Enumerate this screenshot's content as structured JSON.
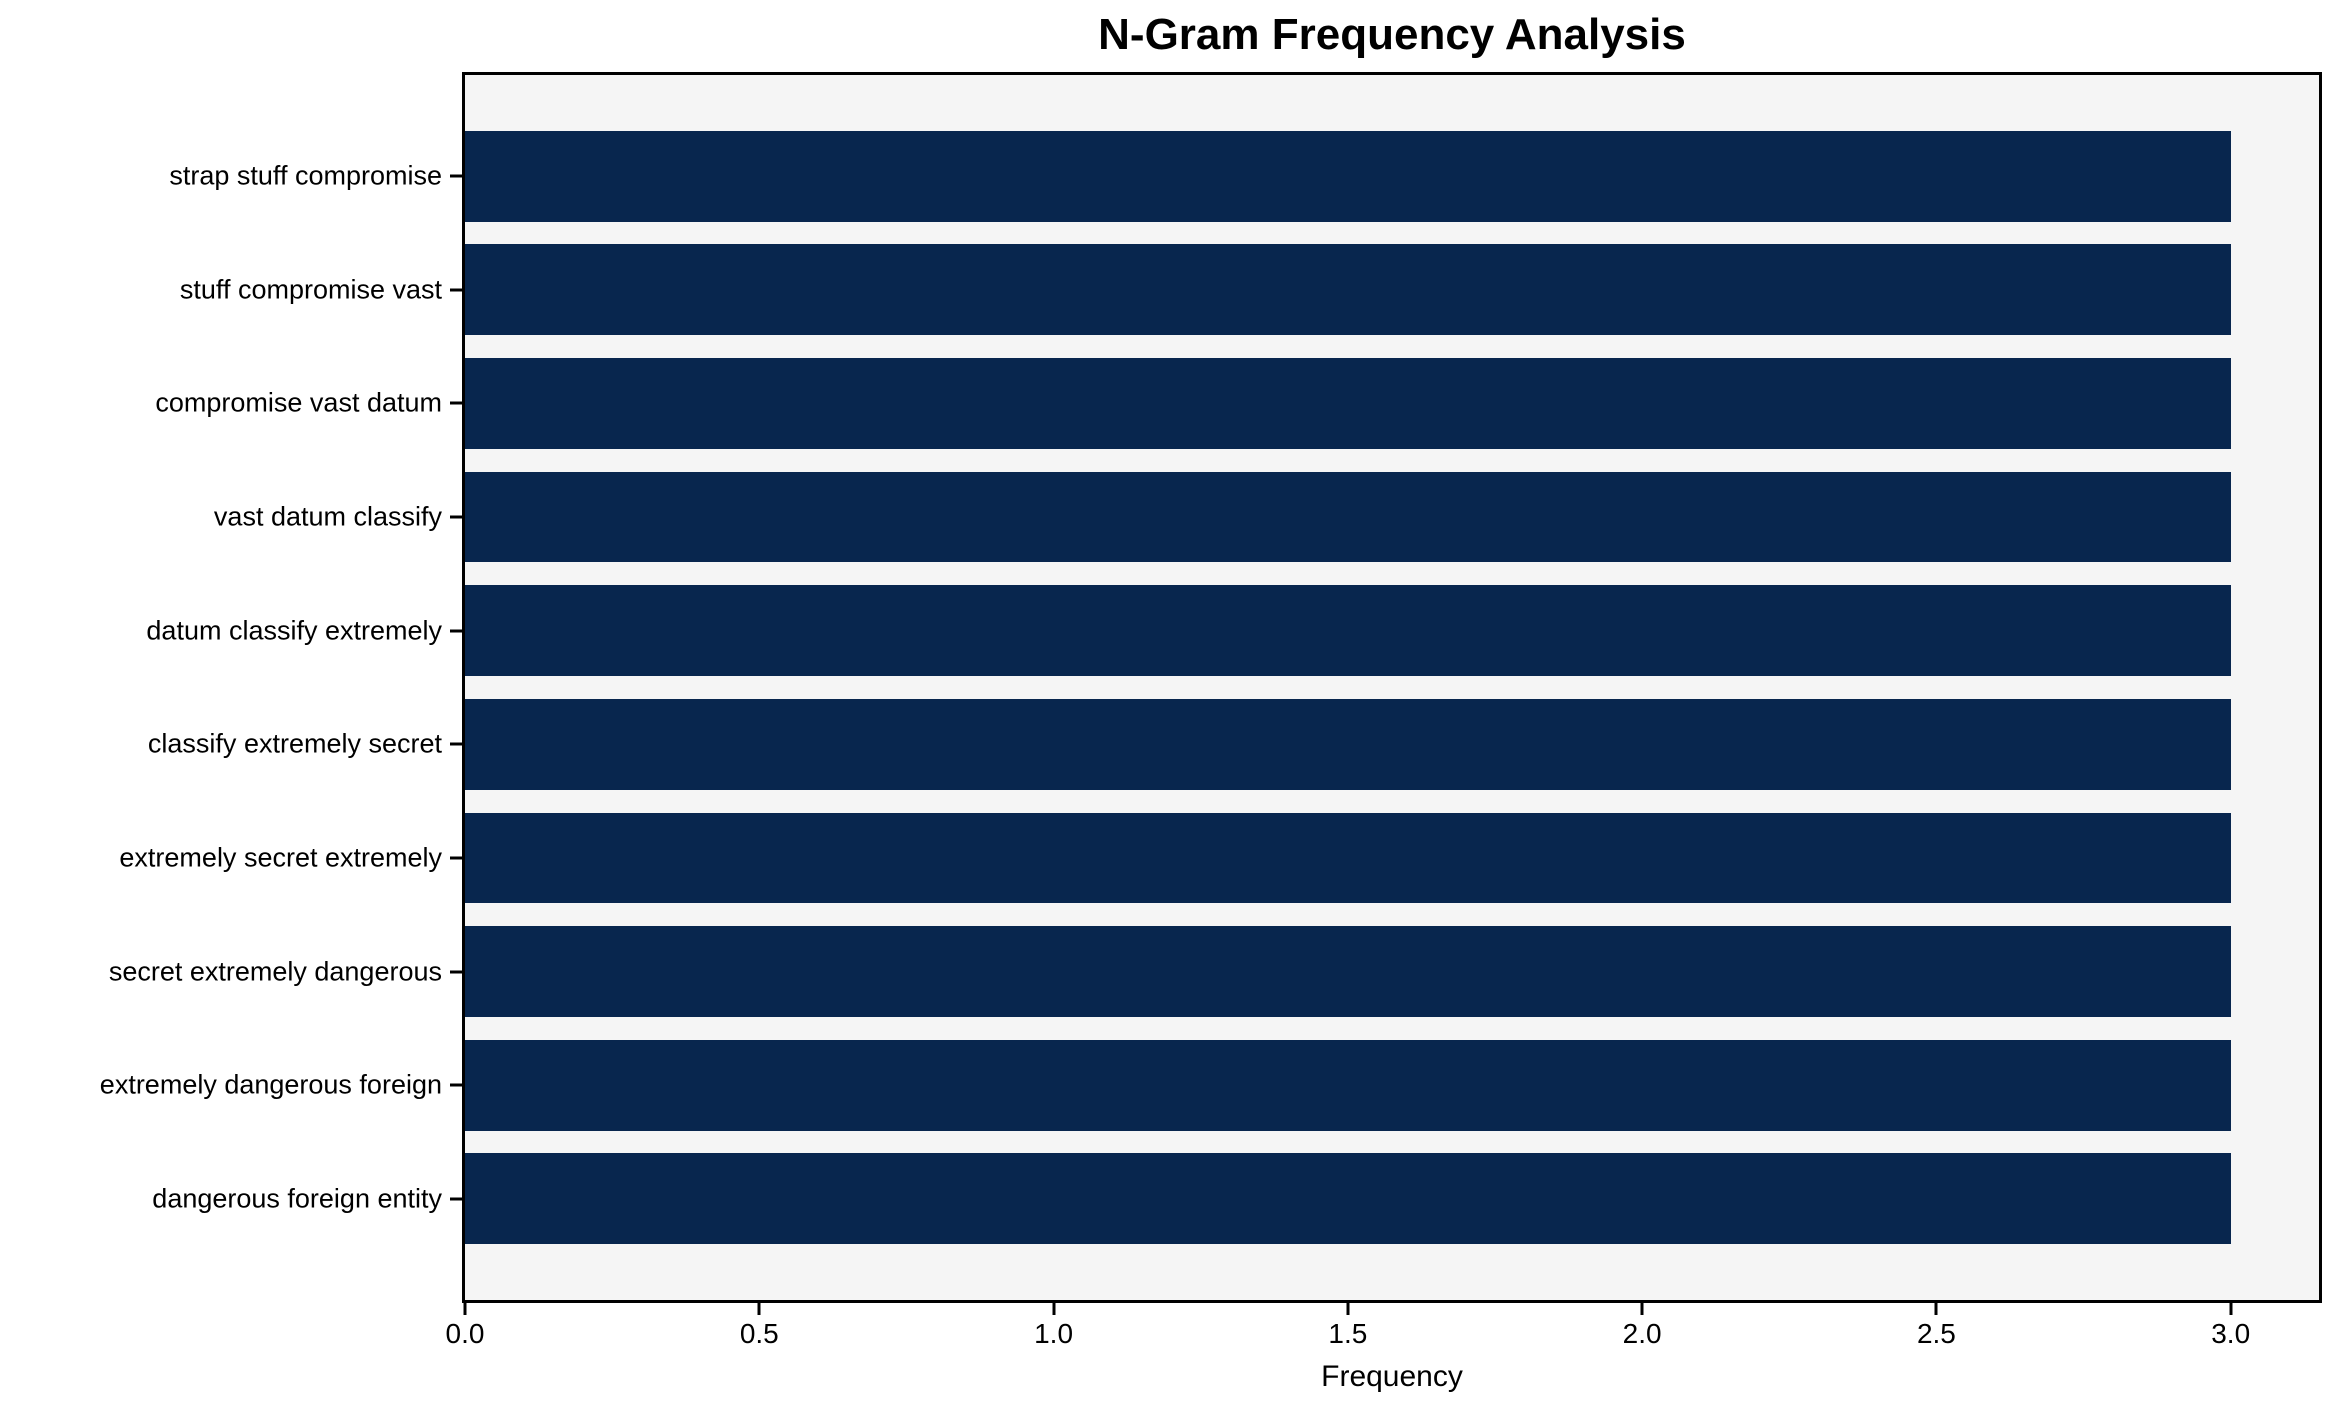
{
  "chart_data": {
    "type": "bar",
    "orientation": "horizontal",
    "title": "N-Gram Frequency Analysis",
    "xlabel": "Frequency",
    "categories": [
      "strap stuff compromise",
      "stuff compromise vast",
      "compromise vast datum",
      "vast datum classify",
      "datum classify extremely",
      "classify extremely secret",
      "extremely secret extremely",
      "secret extremely dangerous",
      "extremely dangerous foreign",
      "dangerous foreign entity"
    ],
    "values": [
      3,
      3,
      3,
      3,
      3,
      3,
      3,
      3,
      3,
      3
    ],
    "xlim": [
      0,
      3.15
    ],
    "xticks": [
      "0.0",
      "0.5",
      "1.0",
      "1.5",
      "2.0",
      "2.5",
      "3.0"
    ],
    "xtick_values": [
      0,
      0.5,
      1.0,
      1.5,
      2.0,
      2.5,
      3.0
    ],
    "bar_color": "#08264e",
    "plot_background": "#f5f5f5",
    "axis_color": "#000000",
    "grid": false,
    "legend": "none"
  }
}
